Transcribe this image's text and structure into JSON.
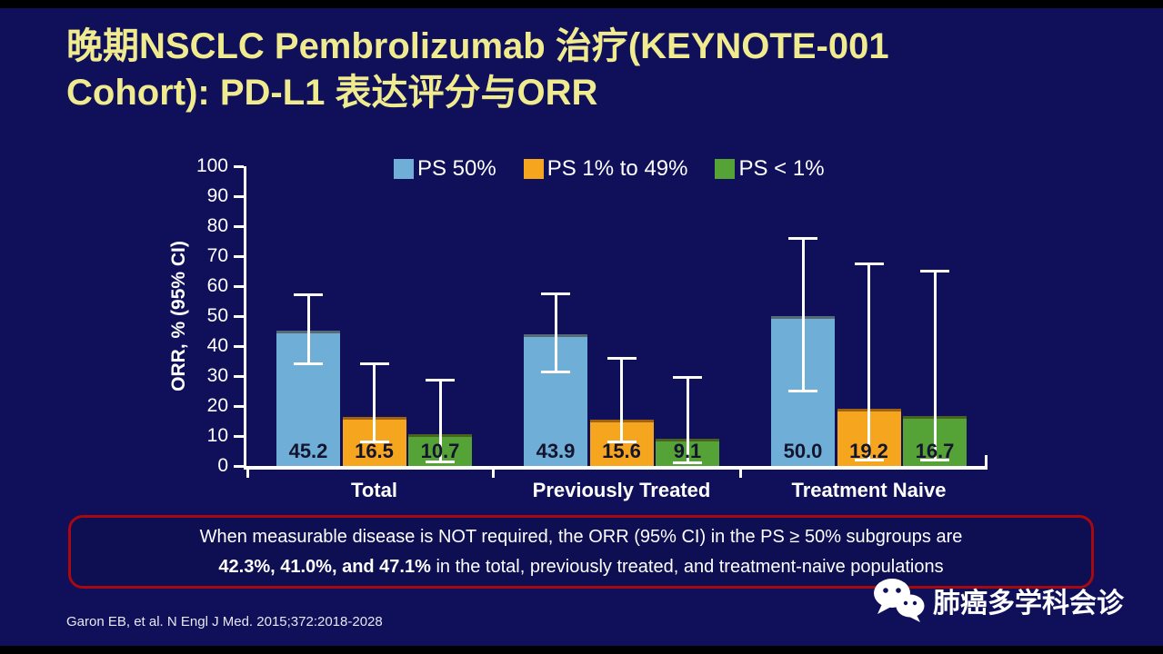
{
  "title": {
    "line1": "晚期NSCLC Pembrolizumab 治疗(KEYNOTE-001",
    "line2": "Cohort): PD-L1 表达评分与ORR"
  },
  "chart_data": {
    "type": "bar",
    "categories": [
      "Total",
      "Previously Treated",
      "Treatment Naive"
    ],
    "series": [
      {
        "name": "PS 50%",
        "color": "#6fafd7",
        "values": [
          45.2,
          43.9,
          50.0
        ],
        "ci_low": [
          34.0,
          31.5,
          25.0
        ],
        "ci_high": [
          57.0,
          57.5,
          76.0
        ]
      },
      {
        "name": "PS 1% to 49%",
        "color": "#f6a51f",
        "values": [
          16.5,
          15.6,
          19.2
        ],
        "ci_low": [
          8.0,
          8.0,
          2.0
        ],
        "ci_high": [
          34.0,
          36.0,
          67.5
        ]
      },
      {
        "name": "PS < 1%",
        "color": "#55a337",
        "values": [
          10.7,
          9.1,
          16.7
        ],
        "ci_low": [
          1.5,
          1.0,
          2.0
        ],
        "ci_high": [
          28.5,
          29.5,
          65.0
        ]
      }
    ],
    "title": "",
    "xlabel": "",
    "ylabel": "ORR, % (95% CI)",
    "ylim": [
      0,
      100
    ],
    "ytick_step": 10,
    "legend_position": "top",
    "error_bars": true,
    "value_labels": "inside-bottom"
  },
  "callout": {
    "line1": "When measurable disease is NOT required, the ORR (95% CI) in the PS ≥ 50% subgroups are",
    "bold_values": "42.3%, 41.0%, and 47.1%",
    "line2_rest": " in the total, previously treated, and treatment-naive populations"
  },
  "citation": "Garon EB, et al. N Engl J Med. 2015;372:2018-2028",
  "wechat": {
    "label": "肺癌多学科会诊"
  },
  "colors": {
    "background": "#0f0f5a",
    "title_text": "#f0eb8f",
    "axis": "#ffffff",
    "callout_border": "#a8090f",
    "bar_value_text": "#14142e"
  }
}
